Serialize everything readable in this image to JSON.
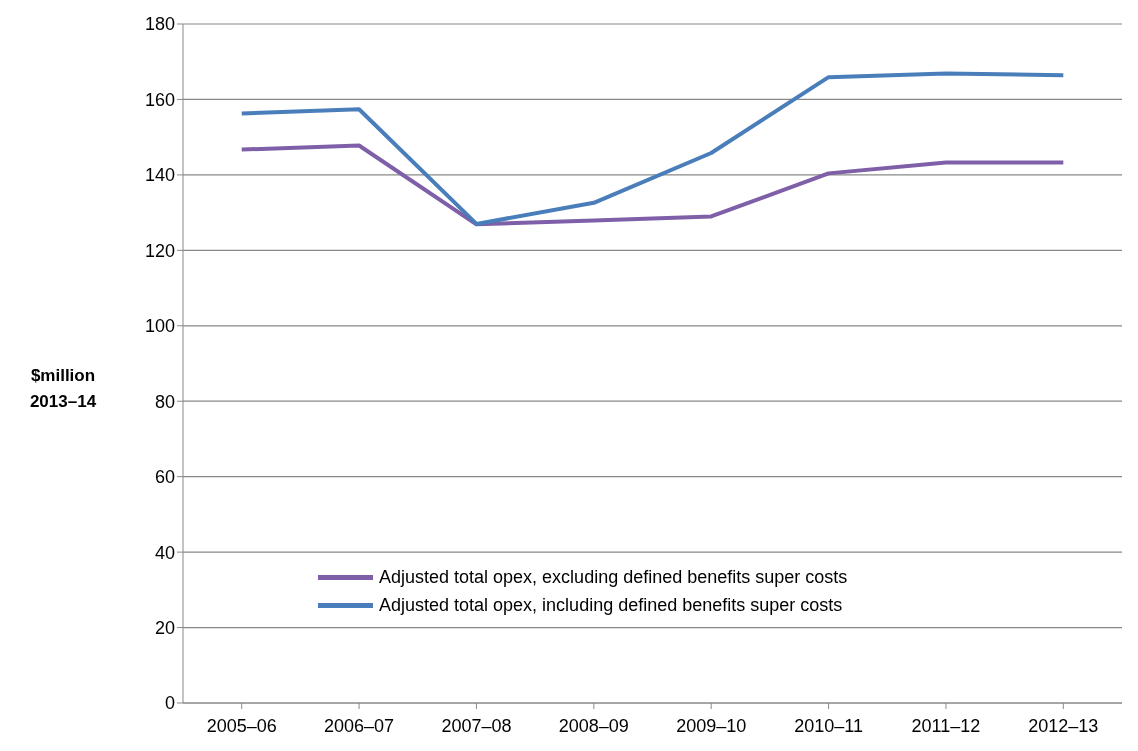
{
  "chart_data": {
    "type": "line",
    "ylabel": "$million 2013–14",
    "categories": [
      "2005–06",
      "2006–07",
      "2007–08",
      "2008–09",
      "2009–10",
      "2010–11",
      "2011–12",
      "2012–13"
    ],
    "series": [
      {
        "name": "Adjusted total opex, excluding defined benefits super costs",
        "color": "#7f5fa8",
        "values": [
          146.7,
          147.8,
          126.9,
          127.9,
          129,
          140.4,
          143.3,
          143.3
        ]
      },
      {
        "name": "Adjusted total opex, including defined benefits super costs",
        "color": "#4a7ebb",
        "values": [
          156.3,
          157.4,
          127,
          132.6,
          145.8,
          165.9,
          166.9,
          166.4
        ]
      }
    ],
    "ylim": [
      0,
      180
    ],
    "yticks": [
      0,
      20,
      40,
      60,
      80,
      100,
      120,
      140,
      160,
      180
    ],
    "grid": "y",
    "legend": "bottom",
    "marker": "none",
    "line_style": "solid"
  }
}
